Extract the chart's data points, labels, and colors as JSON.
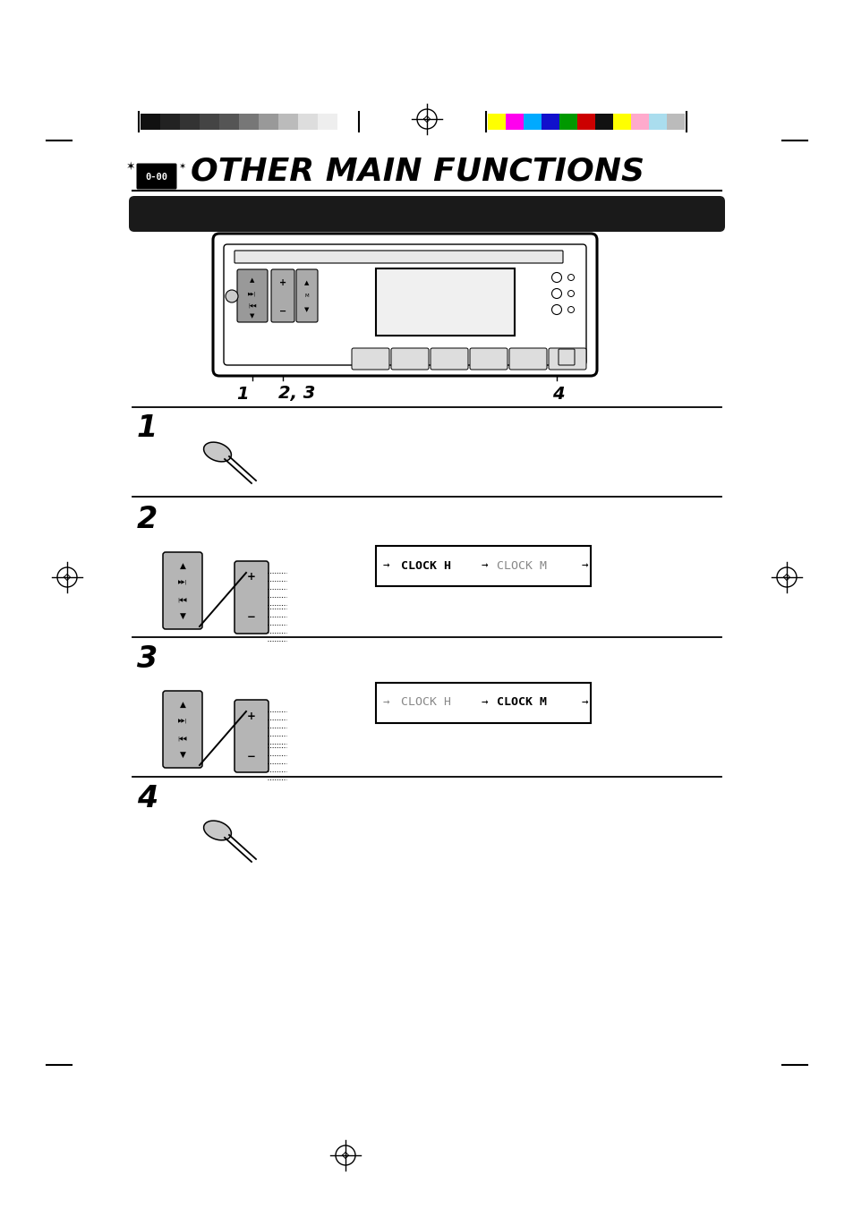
{
  "title": "OTHER MAIN FUNCTIONS",
  "bg_color": "#ffffff",
  "page_width": 9.54,
  "page_height": 13.51,
  "gray_bar_colors": [
    "#111111",
    "#222222",
    "#333333",
    "#444444",
    "#555555",
    "#777777",
    "#999999",
    "#bbbbbb",
    "#dddddd",
    "#eeeeee",
    "#ffffff"
  ],
  "color_bar_colors": [
    "#ffff00",
    "#ff00ee",
    "#00aaff",
    "#1111cc",
    "#009900",
    "#cc0000",
    "#111111",
    "#ffff00",
    "#ffaacc",
    "#aaddee",
    "#bbbbbb"
  ],
  "crosshair_color": "#000000",
  "line_color": "#000000",
  "step_label_color": "#000000",
  "clock_text_2": "CLOCK H  CLOCK M",
  "clock_text_3": "CLOCK H  CLOCK M"
}
